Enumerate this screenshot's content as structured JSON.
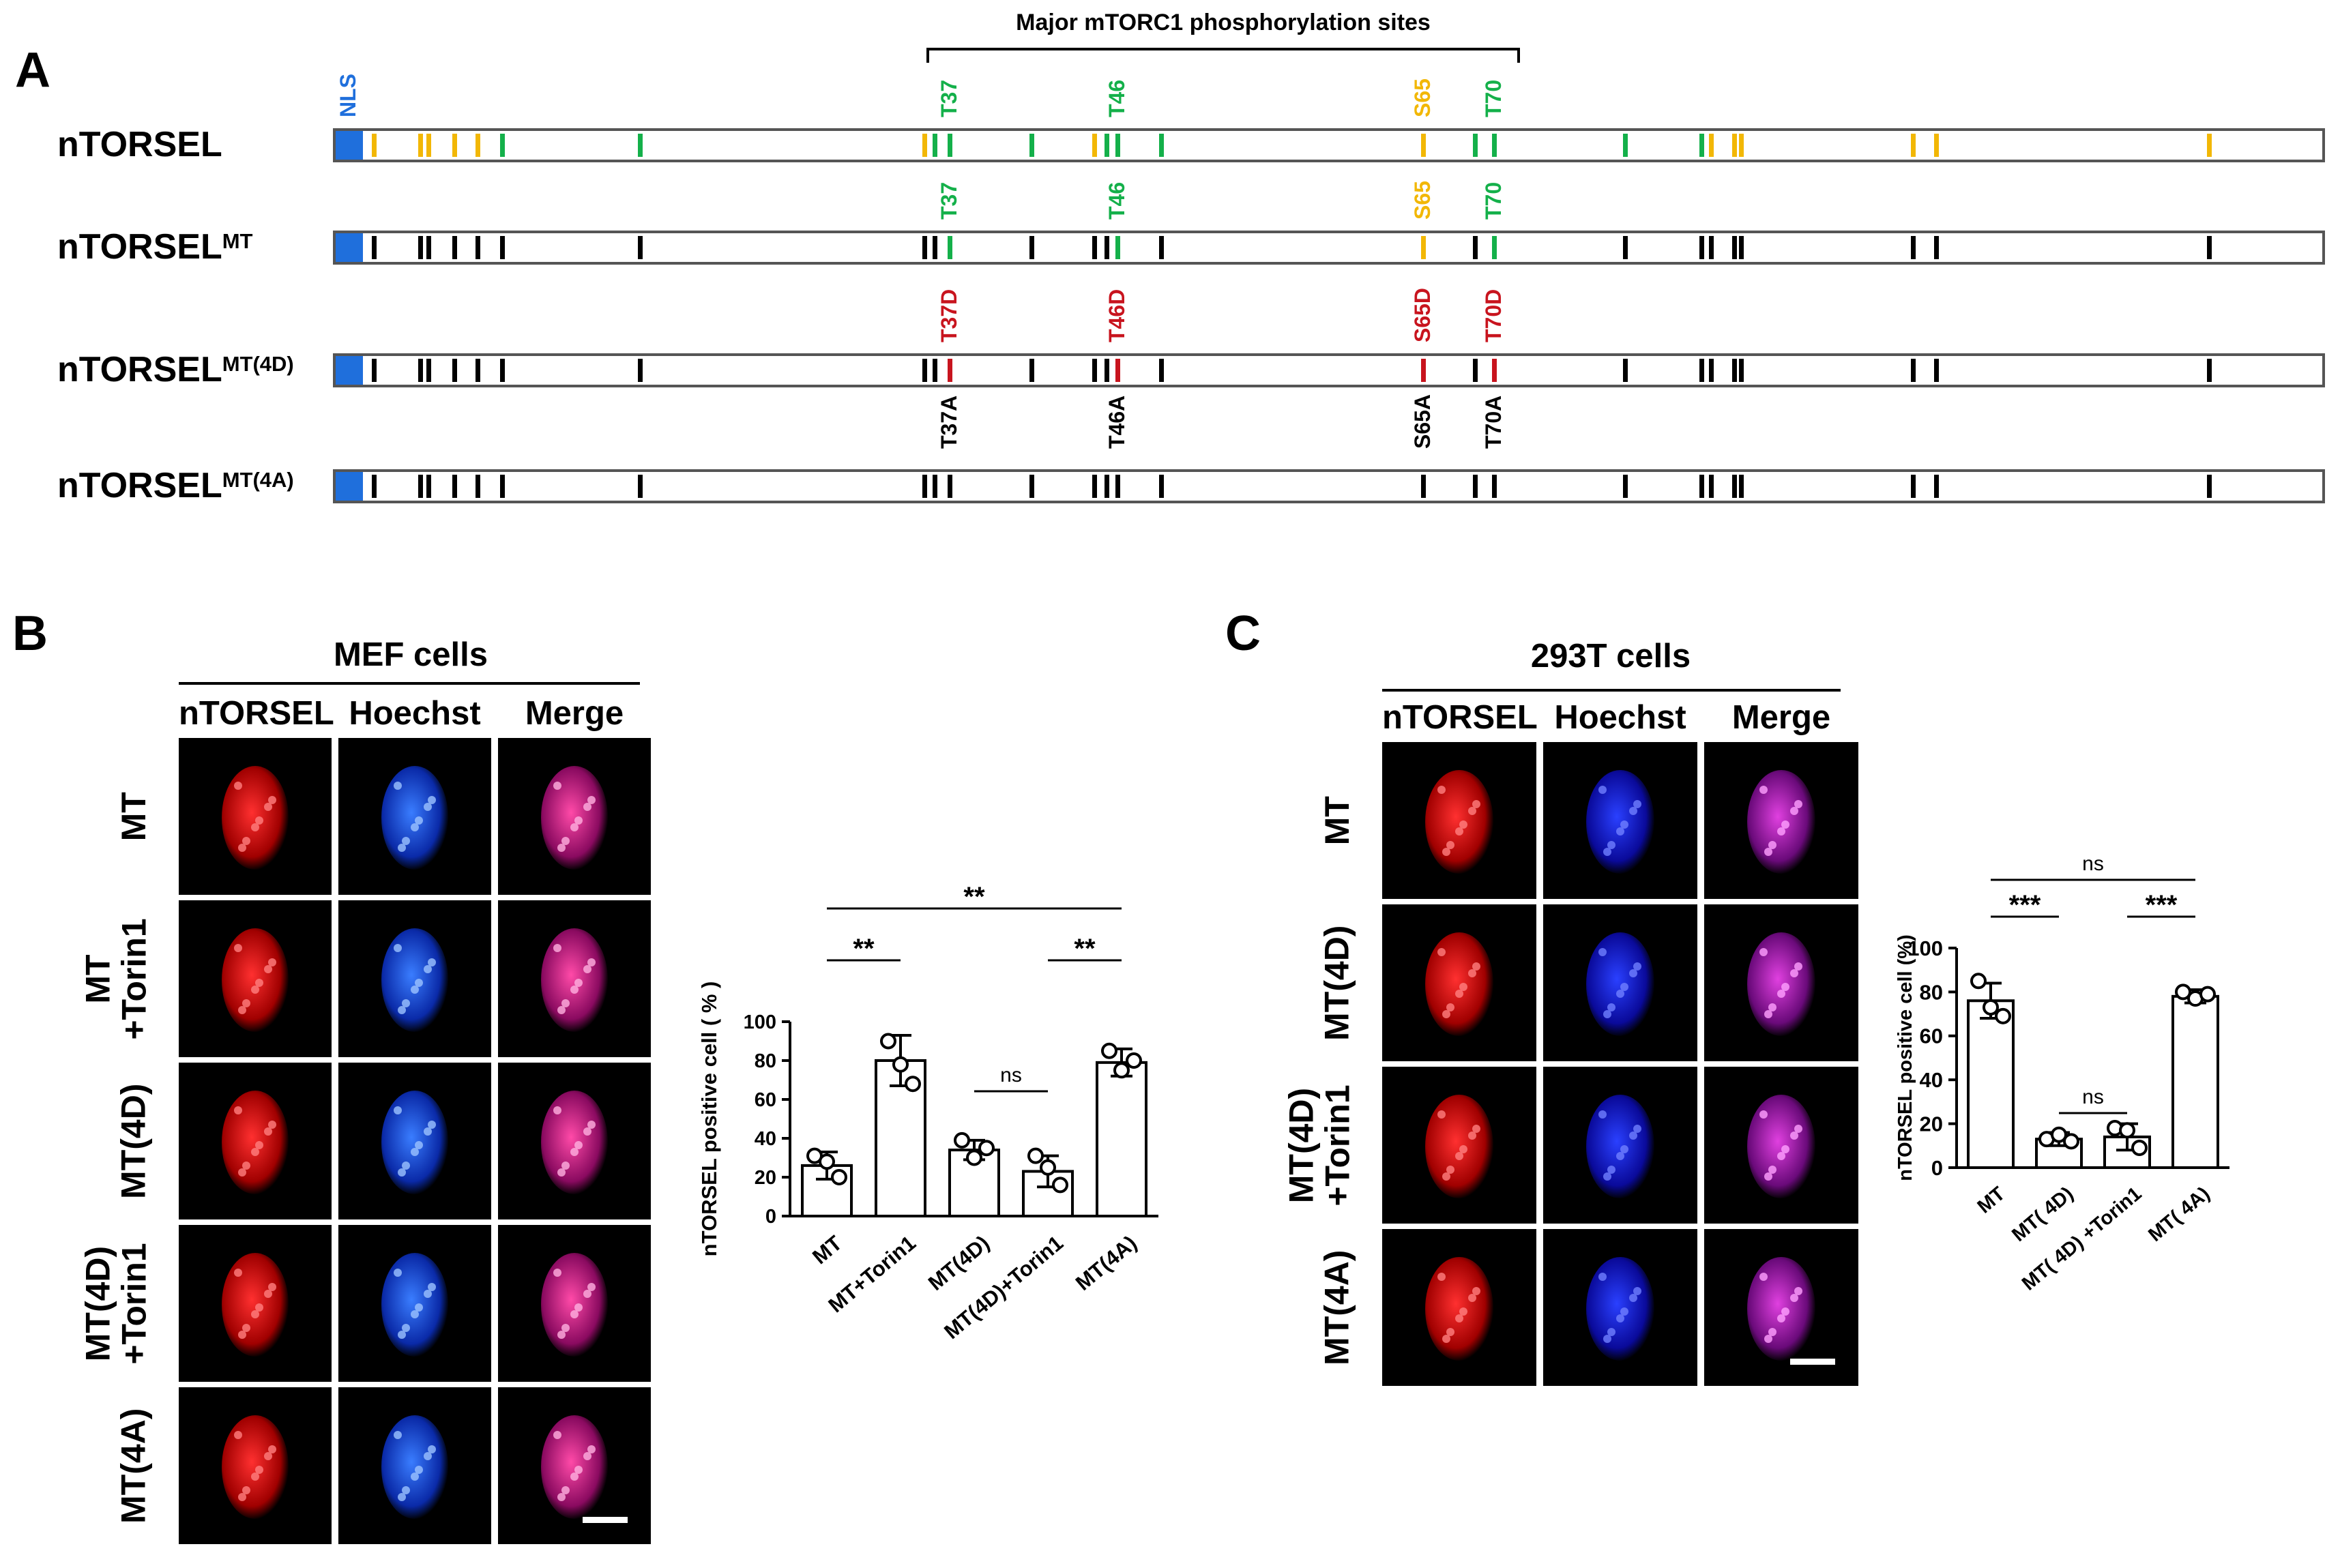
{
  "panel_a": {
    "letter": "A",
    "bracket_title": "Major mTORC1 phosphorylation sites",
    "nls_label": "NLS",
    "colors": {
      "nls": "#1f6fdc",
      "serine": "#f2b705",
      "threonine": "#14b04a",
      "phosphomimetic": "#c8141e",
      "alanine": "#000000",
      "neutral": "#000000"
    },
    "constructs": [
      {
        "base": "nTORSEL",
        "sup": "",
        "site_labels": [
          "T37",
          "T46",
          "S65",
          "T70"
        ],
        "site_label_colors": [
          "#14b04a",
          "#14b04a",
          "#f2b705",
          "#14b04a"
        ]
      },
      {
        "base": "nTORSEL",
        "sup": "MT",
        "site_labels": [
          "T37",
          "T46",
          "S65",
          "T70"
        ],
        "site_label_colors": [
          "#14b04a",
          "#14b04a",
          "#f2b705",
          "#14b04a"
        ]
      },
      {
        "base": "nTORSEL",
        "sup": "MT(4D)",
        "site_labels": [
          "T37D",
          "T46D",
          "S65D",
          "T70D"
        ],
        "site_label_colors": [
          "#c8141e",
          "#c8141e",
          "#c8141e",
          "#c8141e"
        ]
      },
      {
        "base": "nTORSEL",
        "sup": "MT(4A)",
        "site_labels": [
          "T37A",
          "T46A",
          "S65A",
          "T70A"
        ],
        "site_label_colors": [
          "#000000",
          "#000000",
          "#000000",
          "#000000"
        ]
      }
    ]
  },
  "panel_b": {
    "letter": "B",
    "cell_title": "MEF cells",
    "columns": [
      "nTORSEL",
      "Hoechst",
      "Merge"
    ],
    "rows": [
      {
        "line1": "MT",
        "line2": ""
      },
      {
        "line1": "MT",
        "line2": "+Torin1"
      },
      {
        "line1": "MT(4D)",
        "line2": ""
      },
      {
        "line1": "MT(4D)",
        "line2": "+Torin1"
      },
      {
        "line1": "MT(4A)",
        "line2": ""
      }
    ]
  },
  "panel_c": {
    "letter": "C",
    "cell_title": "293T cells",
    "columns": [
      "nTORSEL",
      "Hoechst",
      "Merge"
    ],
    "rows": [
      {
        "line1": "MT",
        "line2": ""
      },
      {
        "line1": "MT(4D)",
        "line2": ""
      },
      {
        "line1": "MT(4D)",
        "line2": "+Torin1"
      },
      {
        "line1": "MT(4A)",
        "line2": ""
      }
    ]
  },
  "chart_data": [
    {
      "type": "bar",
      "ylabel": "nTORSEL positive cell ( % )",
      "ylim": [
        0,
        100
      ],
      "yticks": [
        "0",
        "20",
        "40",
        "60",
        "80",
        "100"
      ],
      "categories": [
        "MT",
        "MT+Torin1",
        "MT(4D)",
        "MT(4D)+Torin1",
        "MT(4A)"
      ],
      "values": [
        26,
        80,
        34,
        23,
        79
      ],
      "errors": [
        7,
        13,
        5,
        8,
        7
      ],
      "points": [
        [
          31,
          28,
          20
        ],
        [
          90,
          78,
          68
        ],
        [
          39,
          30,
          35
        ],
        [
          31,
          25,
          16
        ],
        [
          85,
          75,
          80
        ]
      ],
      "significance": [
        {
          "from": 0,
          "to": 1,
          "label": "**"
        },
        {
          "from": 2,
          "to": 3,
          "label": "ns"
        },
        {
          "from": 3,
          "to": 4,
          "label": "**"
        },
        {
          "from": 0,
          "to": 4,
          "label": "**"
        }
      ]
    },
    {
      "type": "bar",
      "ylabel": "nTORSEL positive cell (%)",
      "ylim": [
        0,
        100
      ],
      "yticks": [
        "0",
        "20",
        "40",
        "60",
        "80",
        "100"
      ],
      "categories": [
        "MT",
        "MT( 4D)",
        "MT( 4D) +Torin1",
        "MT( 4A)"
      ],
      "values": [
        76,
        13,
        14,
        78
      ],
      "errors": [
        8,
        3,
        6,
        3
      ],
      "points": [
        [
          85,
          73,
          69
        ],
        [
          13,
          15,
          12
        ],
        [
          18,
          17,
          9
        ],
        [
          80,
          77,
          79
        ]
      ],
      "significance": [
        {
          "from": 0,
          "to": 1,
          "label": "***"
        },
        {
          "from": 1,
          "to": 2,
          "label": "ns"
        },
        {
          "from": 2,
          "to": 3,
          "label": "***"
        },
        {
          "from": 0,
          "to": 3,
          "label": "ns"
        }
      ]
    }
  ]
}
